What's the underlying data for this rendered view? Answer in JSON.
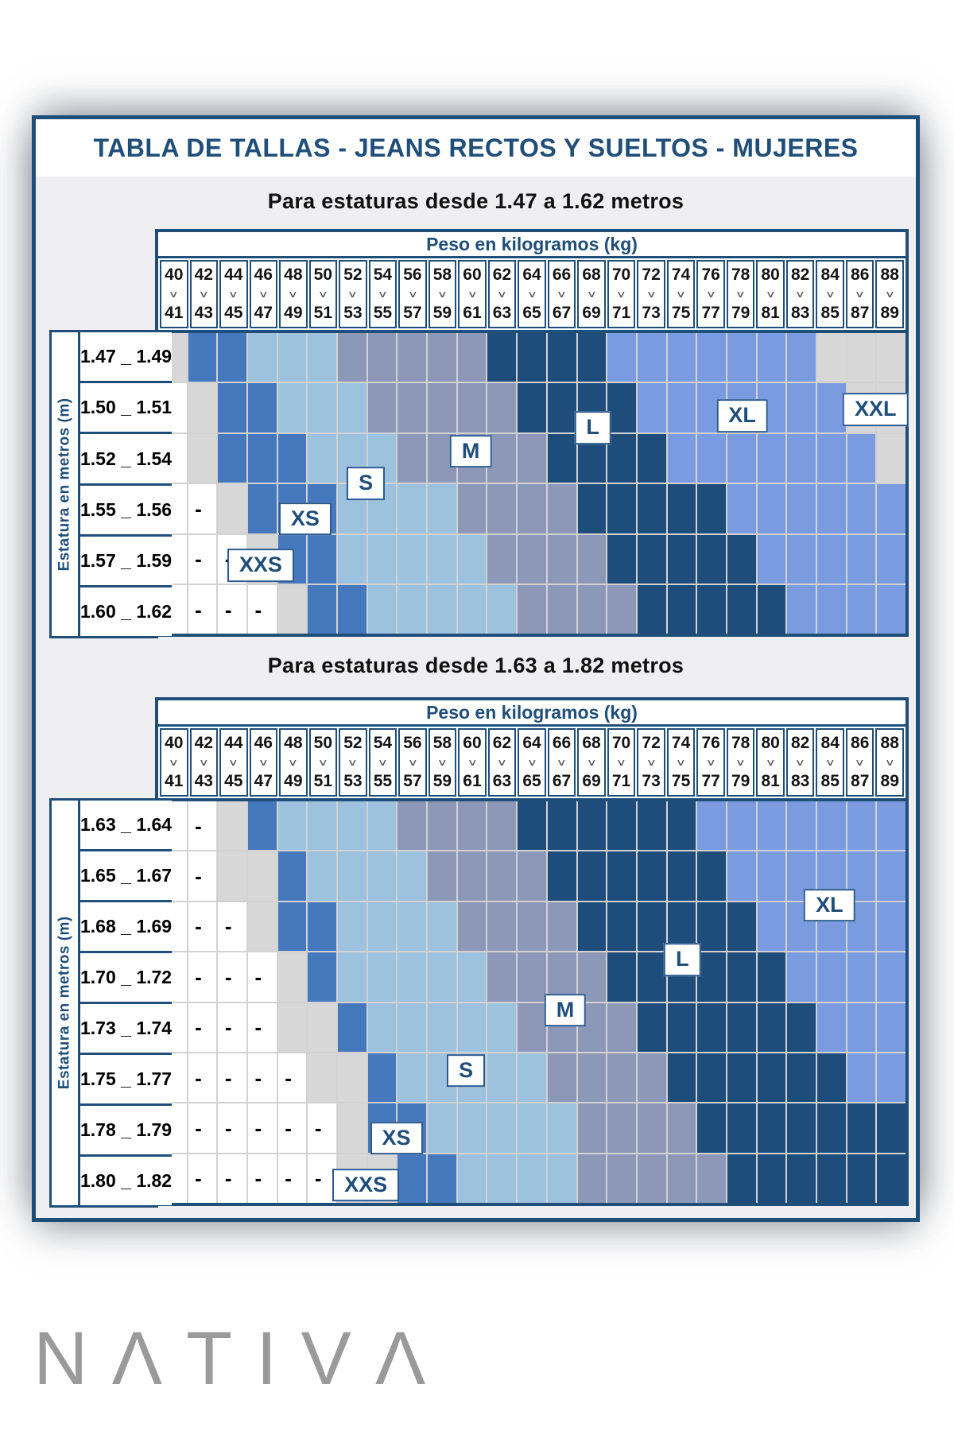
{
  "title": "TABLA DE TALLAS - JEANS RECTOS Y SUELTOS - MUJERES",
  "brand": {
    "name": "NATIVA",
    "display": "NΛTIVΛ"
  },
  "weight_axis_title": "Peso en kilogramos (kg)",
  "height_axis_title": "Estatura en metros (m)",
  "icons": {
    "range-chevron": "∨"
  },
  "no_size_marker": "-",
  "color_legend": {
    "W": "#FFFFFF",
    "G": "#D7D7D7",
    "B": "#4678BD",
    "LB": "#9CC2DD",
    "SL": "#8D98B9",
    "N": "#1E4D7B",
    "CF": "#7A9BE0"
  },
  "size_hint_by_code": {
    "W": "sin talla (-)",
    "G": "XXS (borde izquierdo) / XXL (borde superior derecho)",
    "B": "XS",
    "LB": "S",
    "SL": "M",
    "N": "L",
    "CF": "XL"
  },
  "weights": [
    [
      "40",
      "41"
    ],
    [
      "42",
      "43"
    ],
    [
      "44",
      "45"
    ],
    [
      "46",
      "47"
    ],
    [
      "48",
      "49"
    ],
    [
      "50",
      "51"
    ],
    [
      "52",
      "53"
    ],
    [
      "54",
      "55"
    ],
    [
      "56",
      "57"
    ],
    [
      "58",
      "59"
    ],
    [
      "60",
      "61"
    ],
    [
      "62",
      "63"
    ],
    [
      "64",
      "65"
    ],
    [
      "66",
      "67"
    ],
    [
      "68",
      "69"
    ],
    [
      "70",
      "71"
    ],
    [
      "72",
      "73"
    ],
    [
      "74",
      "75"
    ],
    [
      "76",
      "77"
    ],
    [
      "78",
      "79"
    ],
    [
      "80",
      "81"
    ],
    [
      "82",
      "83"
    ],
    [
      "84",
      "85"
    ],
    [
      "86",
      "87"
    ],
    [
      "88",
      "89"
    ]
  ],
  "chart_data": [
    {
      "type": "heatmap",
      "subtitle": "Para estaturas desde 1.47 a 1.62 metros",
      "y_categories": [
        "1.47 _ 1.49",
        "1.50 _ 1.51",
        "1.52 _ 1.54",
        "1.55 _ 1.56",
        "1.57 _ 1.59",
        "1.60 _ 1.62"
      ],
      "rows": [
        "G B B LB LB LB SL SL SL SL SL N N N N CF CF CF CF CF CF CF G G G",
        "W G B B LB LB LB SL SL SL SL SL N N N N CF CF CF CF CF CF CF G G",
        "W G B B B LB LB LB SL SL SL SL SL N N N N CF CF CF CF CF CF CF G",
        "W W G B B B LB LB LB LB SL SL SL SL N N N N N CF CF CF CF CF CF",
        "W W W G B B LB LB LB LB LB SL SL SL SL N N N N N CF CF CF CF CF",
        "W W W W G B B LB LB LB LB LB SL SL SL SL N N N N N CF CF CF CF"
      ],
      "labels": [
        {
          "text": "XXS",
          "col": 3.32,
          "row": 4.55
        },
        {
          "text": "XS",
          "col": 4.81,
          "row": 3.62
        },
        {
          "text": "S",
          "col": 6.84,
          "row": 2.92
        },
        {
          "text": "M",
          "col": 10.35,
          "row": 2.28
        },
        {
          "text": "L",
          "col": 14.43,
          "row": 1.82
        },
        {
          "text": "XL",
          "col": 19.43,
          "row": 1.58
        },
        {
          "text": "XXL",
          "col": 23.89,
          "row": 1.45
        }
      ]
    },
    {
      "type": "heatmap",
      "subtitle": "Para estaturas desde 1.63 a 1.82 metros",
      "y_categories": [
        "1.63 _ 1.64",
        "1.65 _ 1.67",
        "1.68 _ 1.69",
        "1.70 _ 1.72",
        "1.73 _ 1.74",
        "1.75 _ 1.77",
        "1.78 _ 1.79",
        "1.80 _ 1.82"
      ],
      "rows": [
        "W W G B LB LB LB LB SL SL SL SL N N N N N N CF CF CF CF CF CF CF",
        "W W G G B LB LB LB LB SL SL SL SL N N N N N N CF CF CF CF CF CF",
        "W W W G B B LB LB LB LB SL SL SL SL N N N N N N CF CF CF CF CF",
        "W W W W G B LB LB LB LB LB SL SL SL SL N N N N N N CF CF CF CF",
        "W W W W G G B LB LB LB LB LB SL SL SL SL N N N N N N CF CF CF",
        "W W W W W G G B LB LB LB LB LB SL SL SL SL N N N N N N CF CF",
        "W W W W W W G B B LB LB LB LB LB SL SL SL SL N N N N N N N",
        "W W W W W W G G B B LB LB LB LB SL SL SL SL SL N N N N N N"
      ],
      "labels": [
        {
          "text": "XXS",
          "col": 6.84,
          "row": 7.55
        },
        {
          "text": "XS",
          "col": 7.86,
          "row": 6.62
        },
        {
          "text": "S",
          "col": 10.19,
          "row": 5.28
        },
        {
          "text": "M",
          "col": 13.51,
          "row": 4.08
        },
        {
          "text": "L",
          "col": 17.43,
          "row": 3.08
        },
        {
          "text": "XL",
          "col": 22.35,
          "row": 2.0
        }
      ]
    }
  ]
}
